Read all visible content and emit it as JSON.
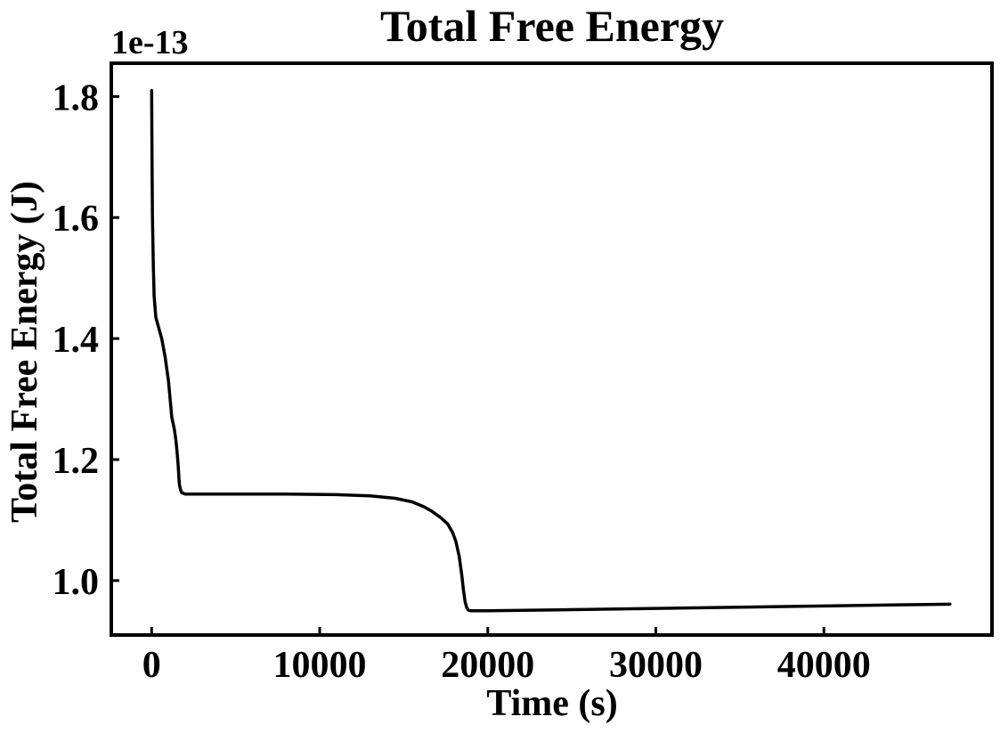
{
  "chart_data": {
    "type": "line",
    "title": "Total Free Energy",
    "xlabel": "Time (s)",
    "ylabel": "Total Free Energy (J)",
    "y_multiplier_label": "1e-13",
    "xlim": [
      -2400,
      50000
    ],
    "ylim": [
      0.91,
      1.855
    ],
    "xticks": [
      0,
      10000,
      20000,
      30000,
      40000
    ],
    "xtick_labels": [
      "0",
      "10000",
      "20000",
      "30000",
      "40000"
    ],
    "yticks": [
      1.0,
      1.2,
      1.4,
      1.6,
      1.8
    ],
    "ytick_labels": [
      "1.0",
      "1.2",
      "1.4",
      "1.6",
      "1.8"
    ],
    "grid": false,
    "legend": "none",
    "series": [
      {
        "color": "#000000",
        "x": [
          0,
          20,
          50,
          100,
          150,
          250,
          400,
          600,
          800,
          1000,
          1200,
          1350,
          1450,
          1520,
          1580,
          1620,
          1650,
          1680,
          1720,
          1760,
          1800,
          1900,
          2000,
          3000,
          5000,
          8000,
          11000,
          13000,
          14500,
          15500,
          16200,
          16700,
          17200,
          17600,
          17900,
          18100,
          18300,
          18450,
          18550,
          18650,
          18750,
          18850,
          19000,
          20000,
          25000,
          30000,
          35000,
          40000,
          45000,
          47500
        ],
        "y": [
          1.81,
          1.7,
          1.6,
          1.52,
          1.47,
          1.435,
          1.42,
          1.4,
          1.37,
          1.33,
          1.27,
          1.25,
          1.23,
          1.21,
          1.19,
          1.17,
          1.16,
          1.155,
          1.15,
          1.147,
          1.145,
          1.144,
          1.143,
          1.143,
          1.143,
          1.143,
          1.142,
          1.14,
          1.136,
          1.13,
          1.122,
          1.114,
          1.104,
          1.094,
          1.08,
          1.065,
          1.04,
          1.01,
          0.985,
          0.965,
          0.955,
          0.951,
          0.95,
          0.95,
          0.952,
          0.954,
          0.956,
          0.958,
          0.96,
          0.961
        ]
      }
    ]
  }
}
